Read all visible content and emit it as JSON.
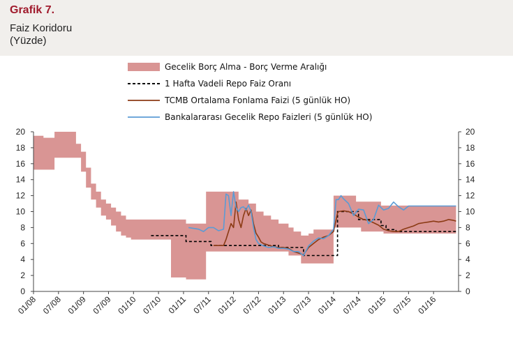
{
  "header": {
    "graph_label": "Grafik 7.",
    "title_line1": "Faiz Koridoru",
    "title_line2": "(Yüzde)"
  },
  "chart_data": {
    "type": "line",
    "x_tick_labels": [
      "01/08",
      "07/08",
      "01/09",
      "07/09",
      "01/10",
      "07/10",
      "01/11",
      "07/11",
      "01/12",
      "07/12",
      "01/13",
      "07/13",
      "01/14",
      "07/14",
      "01/15",
      "07/15",
      "01/16"
    ],
    "x_range": [
      "2008-01",
      "2016-06"
    ],
    "ylim": [
      0,
      20
    ],
    "y_ticks": [
      0,
      2,
      4,
      6,
      8,
      10,
      12,
      14,
      16,
      18,
      20
    ],
    "y_axes": "left and right",
    "grid": false,
    "legend_position": "top",
    "corridor": {
      "name": "Gecelik Borç Alma - Borç Verme Aralığı",
      "color": "#d99594",
      "t": [
        2008.0,
        2008.2,
        2008.42,
        2008.6,
        2008.85,
        2008.95,
        2009.05,
        2009.15,
        2009.25,
        2009.35,
        2009.45,
        2009.55,
        2009.65,
        2009.75,
        2009.85,
        2009.95,
        2010.1,
        2010.3,
        2010.55,
        2010.75,
        2010.85,
        2011.05,
        2011.2,
        2011.45,
        2011.6,
        2011.75,
        2011.85,
        2011.95,
        2012.1,
        2012.3,
        2012.45,
        2012.6,
        2012.75,
        2012.9,
        2013.1,
        2013.2,
        2013.35,
        2013.5,
        2013.6,
        2013.75,
        2013.95,
        2014.0,
        2014.08,
        2014.4,
        2014.45,
        2014.55,
        2014.95,
        2015.0,
        2015.2,
        2015.5,
        2015.8,
        2016.0,
        2016.25,
        2016.45
      ],
      "lower": [
        15.25,
        15.25,
        16.75,
        16.75,
        16.75,
        15.0,
        13.0,
        11.5,
        10.5,
        9.5,
        9.0,
        8.25,
        7.5,
        7.0,
        6.75,
        6.5,
        6.5,
        6.5,
        6.5,
        1.75,
        1.75,
        1.5,
        1.5,
        5.0,
        5.0,
        5.0,
        5.0,
        5.0,
        5.0,
        5.0,
        5.0,
        5.0,
        5.0,
        5.0,
        4.5,
        4.5,
        3.5,
        3.5,
        3.5,
        3.5,
        3.5,
        8.0,
        8.0,
        8.0,
        8.0,
        7.5,
        7.5,
        7.25,
        7.25,
        7.25,
        7.25,
        7.25,
        7.25,
        7.25
      ],
      "upper": [
        19.5,
        19.25,
        20.0,
        20.0,
        18.5,
        17.5,
        15.5,
        13.5,
        12.5,
        11.5,
        11.0,
        10.5,
        10.0,
        9.5,
        9.0,
        9.0,
        9.0,
        9.0,
        9.0,
        9.0,
        9.0,
        8.5,
        8.5,
        12.5,
        12.5,
        12.5,
        12.5,
        12.5,
        11.5,
        11.0,
        10.0,
        9.5,
        9.0,
        8.5,
        8.0,
        7.5,
        7.0,
        7.25,
        7.75,
        7.75,
        7.75,
        12.0,
        12.0,
        12.0,
        11.25,
        11.25,
        10.75,
        10.75,
        10.75,
        10.75,
        10.75,
        10.75,
        10.75,
        10.75
      ]
    },
    "series": [
      {
        "name": "1 Hafta Vadeli Repo Faiz Oranı",
        "color": "#000000",
        "style": "dashed",
        "t": [
          2010.35,
          2011.05,
          2011.05,
          2011.3,
          2011.3,
          2011.55,
          2011.55,
          2011.9,
          2011.9,
          2012.9,
          2012.9,
          2013.4,
          2013.4,
          2014.08,
          2014.08,
          2014.5,
          2014.5,
          2014.95,
          2014.95,
          2015.05,
          2015.05,
          2015.25,
          2015.25,
          2016.45
        ],
        "values": [
          7.0,
          7.0,
          6.25,
          6.25,
          6.25,
          6.25,
          5.75,
          5.75,
          5.75,
          5.75,
          5.5,
          5.5,
          4.5,
          4.5,
          10.0,
          10.0,
          9.0,
          9.0,
          8.25,
          8.25,
          7.75,
          7.75,
          7.5,
          7.5
        ]
      },
      {
        "name": "TCMB Ortalama Fonlama Faizi (5 günlük HO)",
        "color": "#8b3a14",
        "style": "solid",
        "t": [
          2011.6,
          2011.8,
          2011.85,
          2011.9,
          2011.95,
          2012.0,
          2012.05,
          2012.1,
          2012.15,
          2012.2,
          2012.25,
          2012.3,
          2012.35,
          2012.4,
          2012.45,
          2012.5,
          2012.55,
          2012.6,
          2012.7,
          2012.8,
          2012.9,
          2013.0,
          2013.1,
          2013.2,
          2013.3,
          2013.4,
          2013.5,
          2013.6,
          2013.7,
          2013.8,
          2013.9,
          2014.0,
          2014.08,
          2014.1,
          2014.2,
          2014.3,
          2014.4,
          2014.5,
          2014.6,
          2014.7,
          2014.8,
          2014.9,
          2015.0,
          2015.1,
          2015.2,
          2015.3,
          2015.4,
          2015.5,
          2015.6,
          2015.7,
          2015.8,
          2015.9,
          2016.0,
          2016.1,
          2016.2,
          2016.3,
          2016.4,
          2016.45
        ],
        "values": [
          5.75,
          5.75,
          6.5,
          7.5,
          8.5,
          8.0,
          11.2,
          9.0,
          8.0,
          9.5,
          10.4,
          9.5,
          10.2,
          8.5,
          7.3,
          6.8,
          6.2,
          6.0,
          5.8,
          5.6,
          5.5,
          5.5,
          5.4,
          5.0,
          4.8,
          4.6,
          5.5,
          6.0,
          6.5,
          6.8,
          7.0,
          7.5,
          9.8,
          10.0,
          10.1,
          10.0,
          9.7,
          9.3,
          9.0,
          8.9,
          8.6,
          8.3,
          7.8,
          7.6,
          7.5,
          7.5,
          7.8,
          8.0,
          8.2,
          8.5,
          8.6,
          8.7,
          8.8,
          8.7,
          8.8,
          9.0,
          8.9,
          8.8
        ]
      },
      {
        "name": "Bankalararası Gecelik Repo Faizleri (5 günlük HO)",
        "color": "#5b9bd5",
        "style": "solid",
        "t": [
          2011.1,
          2011.3,
          2011.4,
          2011.5,
          2011.6,
          2011.7,
          2011.8,
          2011.85,
          2011.9,
          2011.95,
          2012.0,
          2012.05,
          2012.1,
          2012.15,
          2012.2,
          2012.25,
          2012.3,
          2012.35,
          2012.4,
          2012.45,
          2012.5,
          2012.6,
          2012.7,
          2012.8,
          2012.9,
          2013.0,
          2013.1,
          2013.2,
          2013.3,
          2013.4,
          2013.5,
          2013.6,
          2013.7,
          2013.8,
          2013.9,
          2014.0,
          2014.05,
          2014.1,
          2014.15,
          2014.2,
          2014.3,
          2014.4,
          2014.5,
          2014.6,
          2014.7,
          2014.8,
          2014.9,
          2015.0,
          2015.1,
          2015.2,
          2015.3,
          2015.4,
          2015.5,
          2015.7,
          2016.0,
          2016.2,
          2016.45
        ],
        "values": [
          8.0,
          7.8,
          7.5,
          8.0,
          8.0,
          7.6,
          7.8,
          12.2,
          12.0,
          9.5,
          12.5,
          10.5,
          10.0,
          10.5,
          10.6,
          10.2,
          10.8,
          10.0,
          8.0,
          6.5,
          6.0,
          5.7,
          5.5,
          5.6,
          5.4,
          5.4,
          5.3,
          5.0,
          5.0,
          4.5,
          5.7,
          6.3,
          6.7,
          6.6,
          7.0,
          7.8,
          11.5,
          11.5,
          12.0,
          11.6,
          11.0,
          9.5,
          10.3,
          10.2,
          8.5,
          9.0,
          10.8,
          10.2,
          10.4,
          11.2,
          10.6,
          10.2,
          10.7,
          10.7,
          10.7,
          10.7,
          10.7
        ]
      }
    ]
  }
}
